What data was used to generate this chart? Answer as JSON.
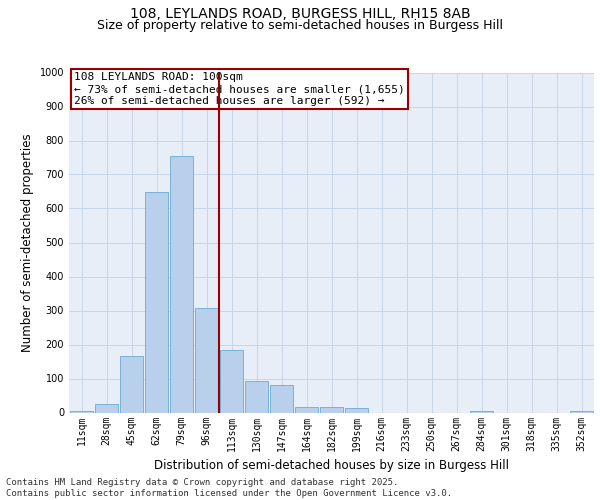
{
  "title_line1": "108, LEYLANDS ROAD, BURGESS HILL, RH15 8AB",
  "title_line2": "Size of property relative to semi-detached houses in Burgess Hill",
  "xlabel": "Distribution of semi-detached houses by size in Burgess Hill",
  "ylabel": "Number of semi-detached properties",
  "categories": [
    "11sqm",
    "28sqm",
    "45sqm",
    "62sqm",
    "79sqm",
    "96sqm",
    "113sqm",
    "130sqm",
    "147sqm",
    "164sqm",
    "182sqm",
    "199sqm",
    "216sqm",
    "233sqm",
    "250sqm",
    "267sqm",
    "284sqm",
    "301sqm",
    "318sqm",
    "335sqm",
    "352sqm"
  ],
  "values": [
    5,
    25,
    165,
    648,
    755,
    307,
    183,
    92,
    80,
    15,
    15,
    12,
    0,
    0,
    0,
    0,
    5,
    0,
    0,
    0,
    5
  ],
  "bar_color": "#b8d0eb",
  "bar_edge_color": "#6aaad4",
  "vline_index": 5,
  "vline_color": "#9b0000",
  "annotation_title": "108 LEYLANDS ROAD: 100sqm",
  "annotation_line1": "← 73% of semi-detached houses are smaller (1,655)",
  "annotation_line2": "26% of semi-detached houses are larger (592) →",
  "annotation_box_color": "#9b0000",
  "ylim": [
    0,
    1000
  ],
  "yticks": [
    0,
    100,
    200,
    300,
    400,
    500,
    600,
    700,
    800,
    900,
    1000
  ],
  "grid_color": "#c8d4e8",
  "background_color": "#e8eef8",
  "footer": "Contains HM Land Registry data © Crown copyright and database right 2025.\nContains public sector information licensed under the Open Government Licence v3.0.",
  "title_fontsize": 10,
  "subtitle_fontsize": 9,
  "axis_label_fontsize": 8.5,
  "tick_fontsize": 7,
  "annotation_fontsize": 8,
  "footer_fontsize": 6.5
}
